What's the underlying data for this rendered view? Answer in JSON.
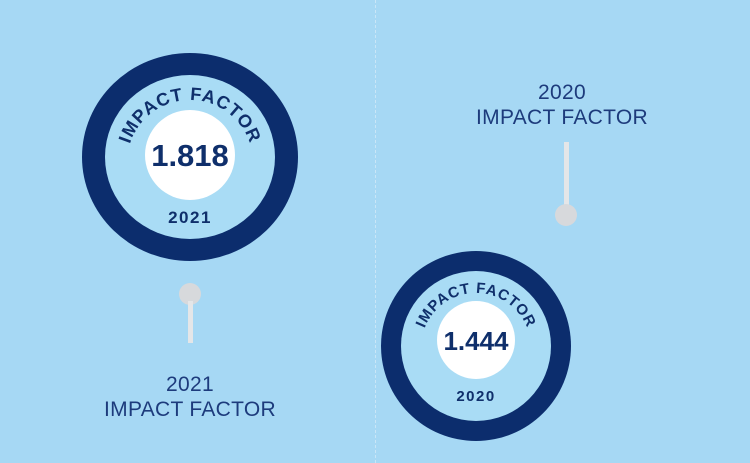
{
  "badges": [
    {
      "heading": "IMPACT FACTOR",
      "value": "1.818",
      "year": "2021"
    },
    {
      "heading": "IMPACT FACTOR",
      "value": "1.444",
      "year": "2020"
    }
  ],
  "captions": {
    "left": {
      "year": "2021",
      "label": "IMPACT FACTOR"
    },
    "right": {
      "year": "2020",
      "label": "IMPACT FACTOR"
    }
  },
  "colors": {
    "background": "#a6d8f4",
    "ring_dark": "#0c2d6d",
    "ring_inner": "#a9dcf5",
    "text_navy": "#0f2f6b",
    "pin": "#d7d9dc"
  }
}
